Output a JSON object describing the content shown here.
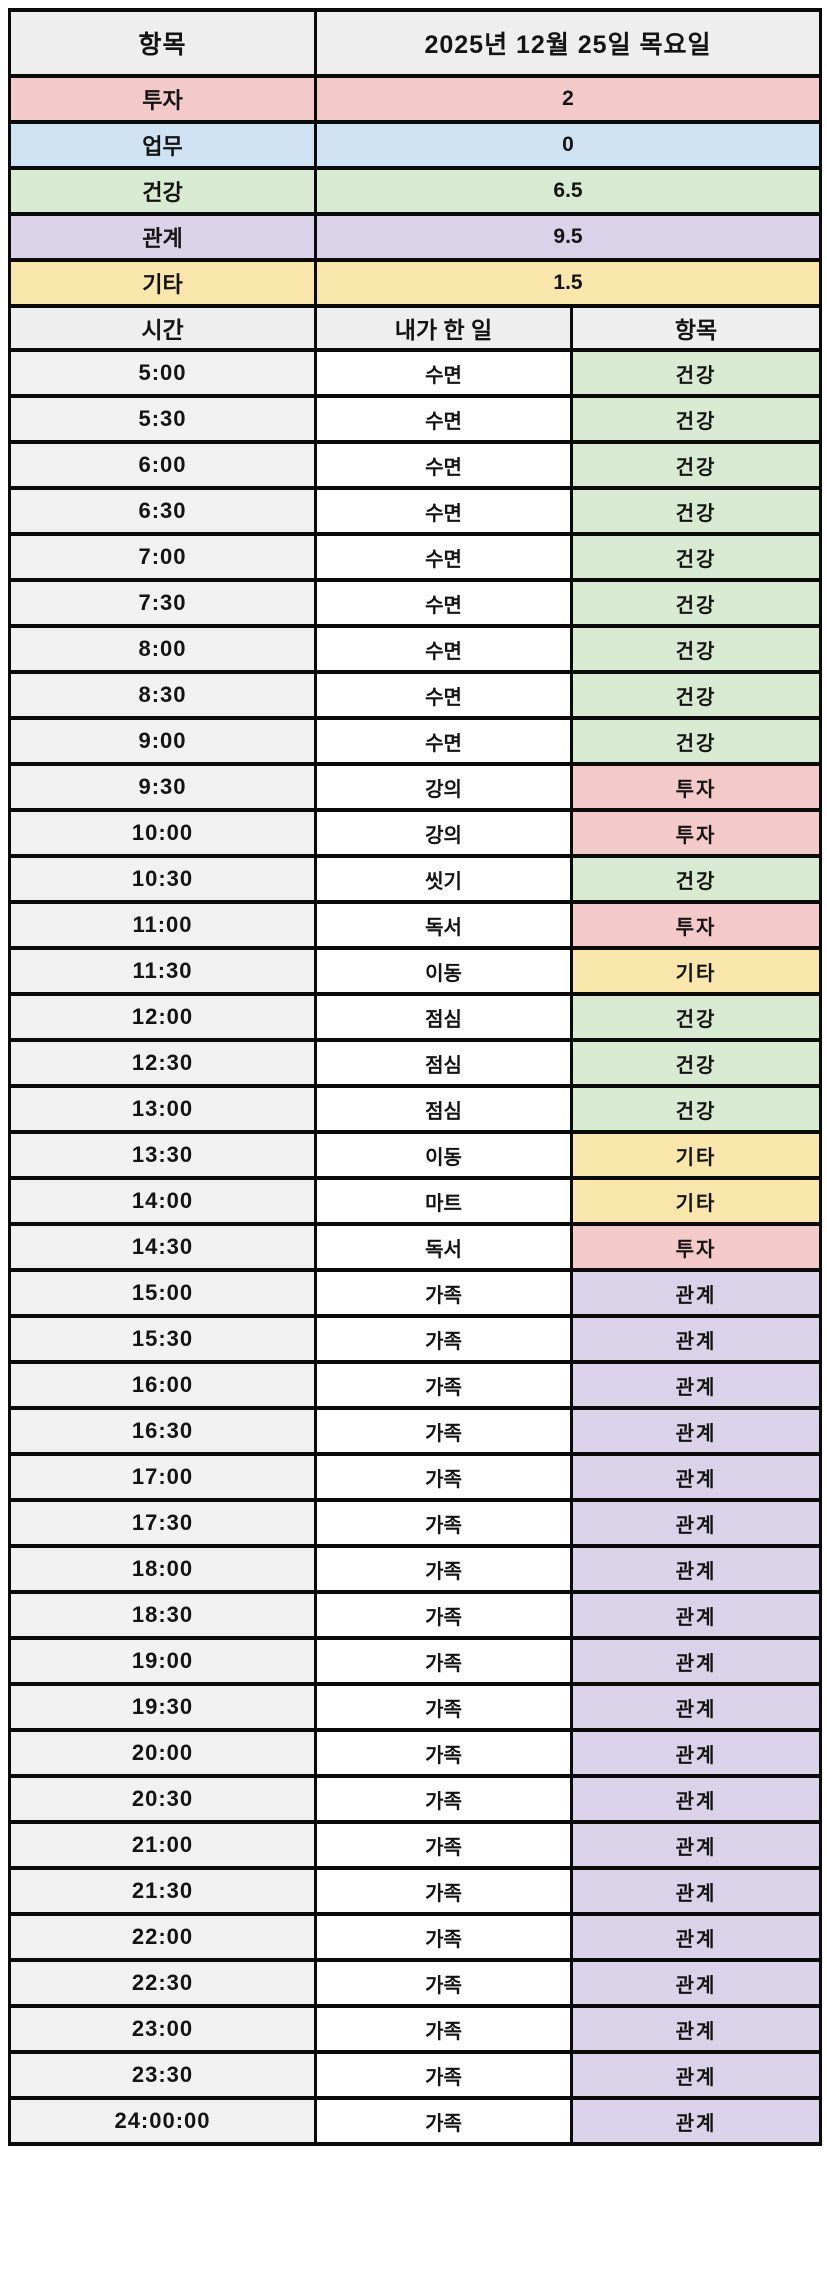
{
  "colors": {
    "invest": "#f4c9c9",
    "work": "#cfe2f3",
    "health": "#d9ead3",
    "relation": "#d9d2e9",
    "etc": "#f8e6ab",
    "header_bg": "#eeeeee",
    "time_bg": "#f1f1f1",
    "activity_bg": "#ffffff",
    "border": "#0a0a0a",
    "text": "#141414"
  },
  "summary": {
    "corner_label": "항목",
    "date_title": "2025년 12월 25일 목요일",
    "rows": [
      {
        "label": "투자",
        "value": "2",
        "cat": "invest"
      },
      {
        "label": "업무",
        "value": "0",
        "cat": "work"
      },
      {
        "label": "건강",
        "value": "6.5",
        "cat": "health"
      },
      {
        "label": "관계",
        "value": "9.5",
        "cat": "relation"
      },
      {
        "label": "기타",
        "value": "1.5",
        "cat": "etc"
      }
    ]
  },
  "schedule": {
    "headers": {
      "time": "시간",
      "activity": "내가 한 일",
      "category": "항목"
    },
    "rows": [
      {
        "time": "5:00",
        "activity": "수면",
        "category": "건강",
        "cat": "health"
      },
      {
        "time": "5:30",
        "activity": "수면",
        "category": "건강",
        "cat": "health"
      },
      {
        "time": "6:00",
        "activity": "수면",
        "category": "건강",
        "cat": "health"
      },
      {
        "time": "6:30",
        "activity": "수면",
        "category": "건강",
        "cat": "health"
      },
      {
        "time": "7:00",
        "activity": "수면",
        "category": "건강",
        "cat": "health"
      },
      {
        "time": "7:30",
        "activity": "수면",
        "category": "건강",
        "cat": "health"
      },
      {
        "time": "8:00",
        "activity": "수면",
        "category": "건강",
        "cat": "health"
      },
      {
        "time": "8:30",
        "activity": "수면",
        "category": "건강",
        "cat": "health"
      },
      {
        "time": "9:00",
        "activity": "수면",
        "category": "건강",
        "cat": "health"
      },
      {
        "time": "9:30",
        "activity": "강의",
        "category": "투자",
        "cat": "invest"
      },
      {
        "time": "10:00",
        "activity": "강의",
        "category": "투자",
        "cat": "invest"
      },
      {
        "time": "10:30",
        "activity": "씻기",
        "category": "건강",
        "cat": "health"
      },
      {
        "time": "11:00",
        "activity": "독서",
        "category": "투자",
        "cat": "invest"
      },
      {
        "time": "11:30",
        "activity": "이동",
        "category": "기타",
        "cat": "etc"
      },
      {
        "time": "12:00",
        "activity": "점심",
        "category": "건강",
        "cat": "health"
      },
      {
        "time": "12:30",
        "activity": "점심",
        "category": "건강",
        "cat": "health"
      },
      {
        "time": "13:00",
        "activity": "점심",
        "category": "건강",
        "cat": "health"
      },
      {
        "time": "13:30",
        "activity": "이동",
        "category": "기타",
        "cat": "etc"
      },
      {
        "time": "14:00",
        "activity": "마트",
        "category": "기타",
        "cat": "etc"
      },
      {
        "time": "14:30",
        "activity": "독서",
        "category": "투자",
        "cat": "invest"
      },
      {
        "time": "15:00",
        "activity": "가족",
        "category": "관계",
        "cat": "relation"
      },
      {
        "time": "15:30",
        "activity": "가족",
        "category": "관계",
        "cat": "relation"
      },
      {
        "time": "16:00",
        "activity": "가족",
        "category": "관계",
        "cat": "relation"
      },
      {
        "time": "16:30",
        "activity": "가족",
        "category": "관계",
        "cat": "relation"
      },
      {
        "time": "17:00",
        "activity": "가족",
        "category": "관계",
        "cat": "relation"
      },
      {
        "time": "17:30",
        "activity": "가족",
        "category": "관계",
        "cat": "relation"
      },
      {
        "time": "18:00",
        "activity": "가족",
        "category": "관계",
        "cat": "relation"
      },
      {
        "time": "18:30",
        "activity": "가족",
        "category": "관계",
        "cat": "relation"
      },
      {
        "time": "19:00",
        "activity": "가족",
        "category": "관계",
        "cat": "relation"
      },
      {
        "time": "19:30",
        "activity": "가족",
        "category": "관계",
        "cat": "relation"
      },
      {
        "time": "20:00",
        "activity": "가족",
        "category": "관계",
        "cat": "relation"
      },
      {
        "time": "20:30",
        "activity": "가족",
        "category": "관계",
        "cat": "relation"
      },
      {
        "time": "21:00",
        "activity": "가족",
        "category": "관계",
        "cat": "relation"
      },
      {
        "time": "21:30",
        "activity": "가족",
        "category": "관계",
        "cat": "relation"
      },
      {
        "time": "22:00",
        "activity": "가족",
        "category": "관계",
        "cat": "relation"
      },
      {
        "time": "22:30",
        "activity": "가족",
        "category": "관계",
        "cat": "relation"
      },
      {
        "time": "23:00",
        "activity": "가족",
        "category": "관계",
        "cat": "relation"
      },
      {
        "time": "23:30",
        "activity": "가족",
        "category": "관계",
        "cat": "relation"
      },
      {
        "time": "24:00:00",
        "activity": "가족",
        "category": "관계",
        "cat": "relation"
      }
    ]
  }
}
